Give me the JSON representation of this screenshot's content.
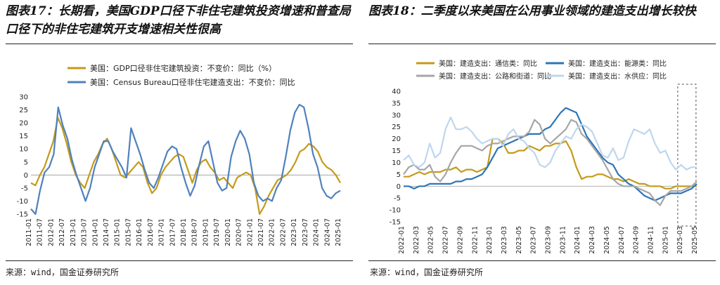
{
  "left": {
    "title": "图表17：长期看，美国GDP口径下非住宅建筑投资增速和普查局口径下的非住宅建筑开支增速相关性很高",
    "source": "来源：wind，国金证券研究所"
  },
  "right": {
    "title": "图表18：二季度以来美国在公用事业领域的建造支出增长较快",
    "source": "来源：wind，国金证券研究所"
  },
  "chart_data": [
    {
      "type": "line",
      "ylim": [
        -15,
        30
      ],
      "yticks": [
        -15,
        -10,
        -5,
        0,
        5,
        10,
        15,
        20,
        25,
        30
      ],
      "xlabels": [
        "2011-01",
        "2011-07",
        "2012-01",
        "2012-07",
        "2013-01",
        "2013-07",
        "2014-01",
        "2014-07",
        "2015-01",
        "2015-07",
        "2016-01",
        "2016-07",
        "2017-01",
        "2017-07",
        "2018-01",
        "2018-07",
        "2019-01",
        "2019-07",
        "2020-01",
        "2020-07",
        "2021-01",
        "2021-07",
        "2022-01",
        "2022-07",
        "2023-01",
        "2023-07",
        "2024-01",
        "2024-07",
        "2025-01"
      ],
      "series": [
        {
          "name": "美国：GDP口径非住宅建筑投资：不变价：同比（%）",
          "color": "#C49A1A",
          "values": [
            -3,
            -4,
            0,
            3,
            8,
            13,
            22,
            18,
            12,
            5,
            0,
            -3,
            -5,
            0,
            5,
            8,
            12,
            14,
            10,
            5,
            0,
            -1,
            1,
            3,
            5,
            3,
            -3,
            -7,
            -5,
            0,
            3,
            5,
            7,
            8,
            7,
            2,
            -3,
            2,
            5,
            6,
            3,
            1,
            -2,
            -1,
            -3,
            -5,
            -1,
            0,
            1,
            0,
            -5,
            -15,
            -12,
            -8,
            -5,
            -2,
            -1,
            0,
            2,
            5,
            9,
            10,
            12,
            11,
            9,
            5,
            3,
            2,
            0,
            -3
          ]
        },
        {
          "name": "美国：Census Bureau口径非住宅建造支出：不变价：同比",
          "color": "#4F81BD",
          "values": [
            -13,
            -15,
            -6,
            1,
            3,
            8,
            26,
            19,
            14,
            6,
            0,
            -5,
            -10,
            -5,
            3,
            8,
            13,
            13,
            9,
            6,
            3,
            -1,
            18,
            13,
            8,
            2,
            -3,
            -5,
            -1,
            4,
            9,
            11,
            10,
            3,
            -3,
            -8,
            -4,
            4,
            11,
            13,
            5,
            -3,
            -6,
            -5,
            7,
            13,
            17,
            14,
            8,
            -3,
            -8,
            -10,
            -9,
            -10,
            -5,
            -2,
            7,
            17,
            24,
            27,
            26,
            18,
            8,
            3,
            -5,
            -8,
            -9,
            -7,
            -6
          ]
        }
      ]
    },
    {
      "type": "line",
      "ylim": [
        -15,
        40
      ],
      "yticks": [
        -15,
        -10,
        -5,
        0,
        5,
        10,
        15,
        20,
        25,
        30,
        35,
        40
      ],
      "xlabels": [
        "2022-01",
        "2022-03",
        "2022-05",
        "2022-07",
        "2022-09",
        "2022-11",
        "2023-01",
        "2023-03",
        "2023-05",
        "2023-07",
        "2023-09",
        "2023-11",
        "2024-01",
        "2024-03",
        "2024-05",
        "2024-07",
        "2024-09",
        "2024-11",
        "2025-01",
        "2025-03",
        "2025-05"
      ],
      "series": [
        {
          "name": "美国：建造支出：通信类：同比",
          "color": "#C49A1A",
          "values": [
            4,
            4,
            5,
            6,
            5,
            6,
            6,
            6,
            7,
            7,
            8,
            6,
            7,
            7,
            6,
            7,
            8,
            20,
            20,
            18,
            14,
            14,
            15,
            15,
            17,
            16,
            15,
            17,
            17,
            18,
            18,
            19,
            15,
            8,
            3,
            4,
            4,
            5,
            5,
            4,
            3,
            3,
            2,
            3,
            2,
            1,
            1,
            0,
            0,
            0,
            -1,
            -1,
            0,
            0,
            0,
            0,
            0
          ]
        },
        {
          "name": "美国：建造支出：能源类：同比",
          "color": "#2E75B6",
          "values": [
            0,
            0,
            -1,
            0,
            0,
            1,
            1,
            1,
            1,
            1,
            2,
            2,
            3,
            3,
            4,
            5,
            8,
            12,
            16,
            17,
            18,
            19,
            20,
            21,
            22,
            22,
            22,
            24,
            25,
            28,
            31,
            33,
            32,
            31,
            26,
            21,
            18,
            15,
            12,
            10,
            9,
            5,
            3,
            1,
            0,
            -2,
            -4,
            -5,
            -6,
            -5,
            -4,
            -3,
            -3,
            -3,
            -2,
            -1,
            1
          ]
        },
        {
          "name": "美国：建造支出：公路和街道：同比",
          "color": "#A6A6A6",
          "values": [
            5,
            8,
            9,
            7,
            7,
            9,
            4,
            2,
            5,
            10,
            14,
            17,
            17,
            17,
            16,
            15,
            17,
            18,
            18,
            19,
            20,
            21,
            21,
            21,
            23,
            28,
            26,
            20,
            18,
            20,
            22,
            24,
            28,
            27,
            22,
            20,
            17,
            14,
            11,
            7,
            3,
            1,
            0,
            0,
            0,
            -1,
            -2,
            -3,
            -6,
            -8,
            -4,
            -2,
            -2,
            -2,
            -1,
            0,
            2
          ]
        },
        {
          "name": "美国：建造支出：水供应：同比",
          "color": "#BDD7EE",
          "values": [
            11,
            13,
            9,
            8,
            10,
            18,
            12,
            14,
            24,
            29,
            24,
            24,
            25,
            23,
            20,
            18,
            19,
            20,
            20,
            17,
            22,
            24,
            20,
            19,
            16,
            14,
            9,
            8,
            10,
            15,
            18,
            21,
            20,
            24,
            26,
            25,
            23,
            18,
            13,
            12,
            16,
            11,
            12,
            19,
            24,
            23,
            22,
            24,
            18,
            14,
            15,
            10,
            7,
            9,
            7,
            8,
            8
          ]
        }
      ]
    }
  ]
}
